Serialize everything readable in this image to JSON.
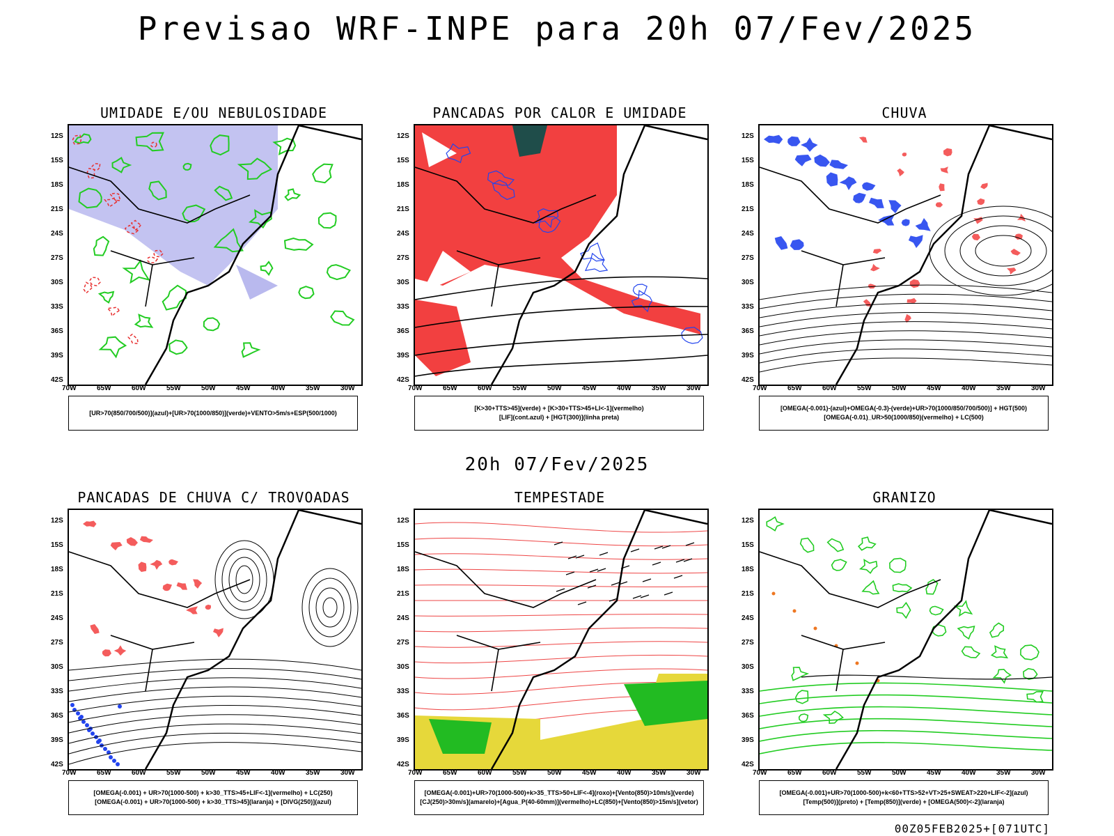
{
  "header": {
    "title": "Previsao WRF-INPE  para 20h 07/Fev/2025"
  },
  "mid": {
    "date": "20h 07/Fev/2025"
  },
  "footer": {
    "stamp": "00Z05FEB2025+[071UTC]"
  },
  "axes": {
    "lat_labels": [
      "12S",
      "15S",
      "18S",
      "21S",
      "24S",
      "27S",
      "30S",
      "33S",
      "36S",
      "39S",
      "42S"
    ],
    "lon_labels": [
      "70W",
      "65W",
      "60W",
      "55W",
      "50W",
      "45W",
      "40W",
      "35W",
      "30W"
    ]
  },
  "panels": [
    {
      "id": "umidade",
      "title": "UMIDADE E/OU NEBULOSIDADE",
      "legend": [
        "[UR>70(850/700/500)](azul)+[UR>70(1000/850)](verde)+VENTO>5m/s+ESP(500/1000)"
      ],
      "colors": {
        "fill": "#b9b9ee",
        "line1": "#22cc22",
        "line2": "#e83030"
      }
    },
    {
      "id": "pancadas-calor",
      "title": "PANCADAS POR CALOR E UMIDADE",
      "legend": [
        "[K>30+TTS>45](verde) + [K>30+TTS>45+LI<-1](vermelho)",
        "[LIF](cont.azul) + [HGT(300)](linha preta)"
      ],
      "colors": {
        "fill": "#f24040",
        "dark": "#1f4d4a",
        "line1": "#2244ee"
      }
    },
    {
      "id": "chuva",
      "title": "CHUVA",
      "legend": [
        "[OMEGA(-0.001)-(azul)+OMEGA(-0.3)-(verde)+UR>70(1000/850/700/500)] + HGT(500)",
        "[OMEGA(-0.01)_UR>50(1000/850)(vermelho) + LC(500)"
      ],
      "colors": {
        "fill": "#f24040",
        "blue": "#2244ee",
        "green": "#22cc22"
      }
    },
    {
      "id": "trovoadas",
      "title": "PANCADAS DE CHUVA C/ TROVOADAS",
      "legend": [
        "[OMEGA(-0.001) + UR>70(1000-500) + k>30_TTS>45+LIF<-1](vermelho) + LC(250)",
        "[OMEGA(-0.001) + UR>70(1000-500) + k>30_TTS>45](laranja) + [DIVG(250)](azul)"
      ],
      "colors": {
        "fill": "#f24040",
        "blue": "#2244ee"
      }
    },
    {
      "id": "tempestade",
      "title": "TEMPESTADE",
      "legend": [
        "[OMEGA(-0.001)+UR>70(1000-500)+k>35_TTS>50+LIF<-4](roxo)+[Vento(850)>10m/s](verde)",
        "[CJ(250)>30m/s](amarelo)+[Agua_P(40-60mm)](vermelho)+LC(850)+[Vento(850)>15m/s](vetor)"
      ],
      "colors": {
        "yellow": "#e6d83a",
        "green": "#22bb22",
        "line1": "#ee4444"
      }
    },
    {
      "id": "granizo",
      "title": "GRANIZO",
      "legend": [
        "[OMEGA(-0.001)+UR>70(1000-500)+k<60+TTS>52+VT>25+SWEAT>220+LIF<-2](azul)",
        "[Temp(500)](preto) + [Temp(850)](verde) + [OMEGA(500)<-2](laranja)"
      ],
      "colors": {
        "line1": "#22cc22",
        "orange": "#ee7722"
      }
    }
  ]
}
